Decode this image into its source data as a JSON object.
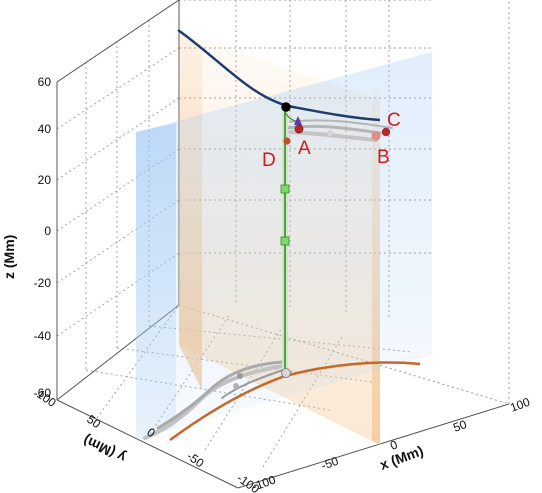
{
  "chart_data": {
    "type": "3d-line",
    "title": "",
    "axes": {
      "x": {
        "label": "x (Mm)",
        "ticks": [
          "-100",
          "-50",
          "0",
          "50",
          "100"
        ],
        "range": [
          -100,
          100
        ]
      },
      "y": {
        "label": "y (Mm)",
        "ticks": [
          "-100",
          "-50",
          "0",
          "50",
          "100"
        ],
        "range": [
          -100,
          100
        ]
      },
      "z": {
        "label": "z (Mm)",
        "ticks": [
          "-60",
          "-40",
          "-20",
          "0",
          "20",
          "40",
          "60"
        ],
        "range": [
          -60,
          65
        ]
      }
    },
    "grid": true,
    "planes": [
      {
        "kind": "x=const",
        "color": "#f5c58f"
      },
      {
        "kind": "y=const",
        "color": "#9cc7f2"
      }
    ],
    "point_labels": [
      {
        "text": "A",
        "color": "#cc1f1f"
      },
      {
        "text": "B",
        "color": "#cc1f1f"
      },
      {
        "text": "C",
        "color": "#cc1f1f"
      },
      {
        "text": "D",
        "color": "#cc1f1f"
      }
    ],
    "series": [
      {
        "style": "top-arc",
        "color": "#1f3d6b"
      },
      {
        "style": "bottom-arc",
        "color": "#c8662a"
      },
      {
        "style": "vertical-line",
        "color": "#3b8a28"
      },
      {
        "style": "loops",
        "color": "#a8a8a8"
      }
    ],
    "markers": [
      {
        "shape": "sphere",
        "color": "#000000"
      },
      {
        "shape": "sphere",
        "color": "#bdbdbd"
      },
      {
        "shape": "square",
        "color": "#7fd86a"
      },
      {
        "shape": "triangle",
        "color": "#5a3aa8"
      }
    ]
  }
}
